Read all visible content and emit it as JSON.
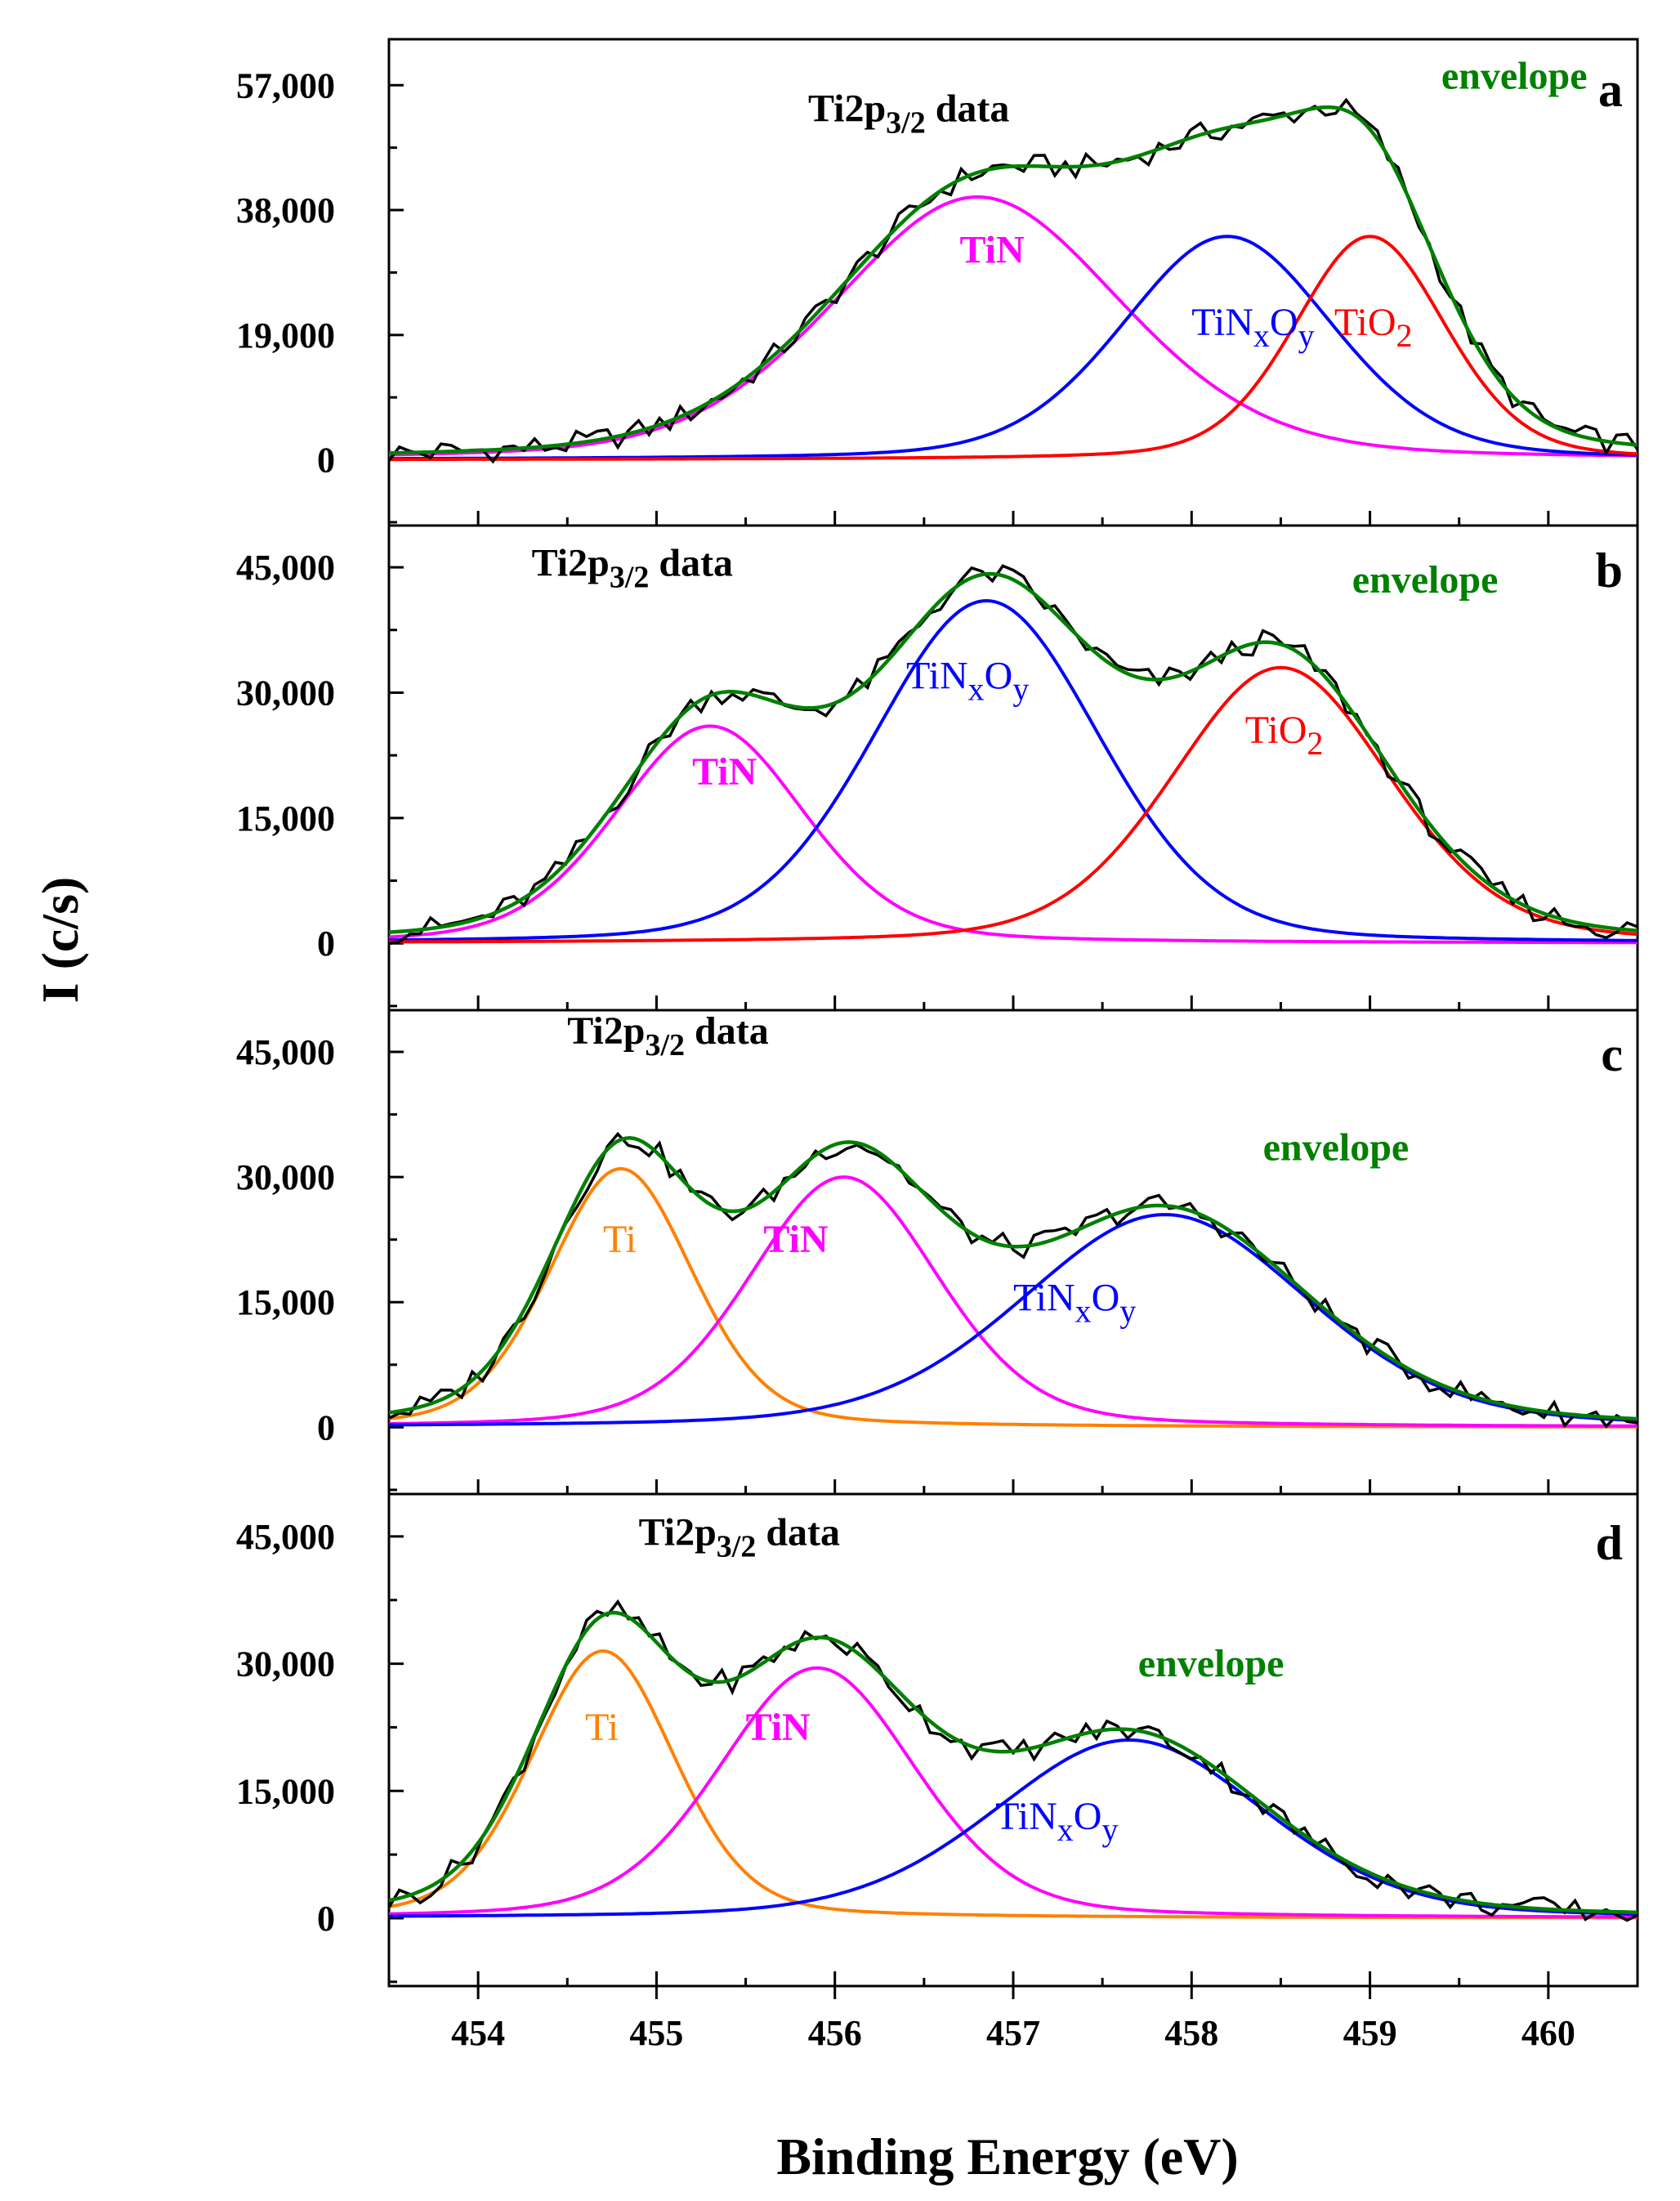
{
  "chart_data": [
    {
      "type": "line",
      "panel": "a",
      "xlabel": "Binding Energy (eV)",
      "ylabel": "I (c/s)",
      "xlim": [
        453.5,
        460.5
      ],
      "ylim": [
        -10000,
        64000
      ],
      "yticks": [
        0,
        19000,
        38000,
        57000
      ],
      "ytick_labels": [
        "0",
        "19,000",
        "38,000",
        "57,000"
      ],
      "annotations": {
        "data_label": "Ti2p",
        "data_label_sub": "3/2",
        "data_label_tail": " data",
        "envelope": "envelope",
        "peaks": [
          {
            "name": "TiN",
            "main": "TiN",
            "sub1": "",
            "mid": "",
            "sub2": ""
          },
          {
            "name": "TiNxOy",
            "main": "TiN",
            "sub1": "x",
            "mid": "O",
            "sub2": "y"
          },
          {
            "name": "TiO2",
            "main": "TiO",
            "sub1": "2",
            "mid": "",
            "sub2": ""
          }
        ]
      },
      "components": [
        {
          "name": "TiN",
          "color": "#ff00ff",
          "center": 456.8,
          "amplitude": 40000,
          "fwhm": 1.9,
          "eta": 0.25
        },
        {
          "name": "TiNxOy",
          "color": "#0000ff",
          "center": 458.2,
          "amplitude": 34000,
          "fwhm": 1.4,
          "eta": 0.25
        },
        {
          "name": "TiO2",
          "color": "#ff0000",
          "center": 459.0,
          "amplitude": 34000,
          "fwhm": 1.0,
          "eta": 0.25
        }
      ],
      "envelope_color": "#008000",
      "data_color": "#000000"
    },
    {
      "type": "line",
      "panel": "b",
      "xlabel": "Binding Energy (eV)",
      "ylabel": "I (c/s)",
      "xlim": [
        453.5,
        460.5
      ],
      "ylim": [
        -8000,
        50000
      ],
      "yticks": [
        0,
        15000,
        30000,
        45000
      ],
      "ytick_labels": [
        "0",
        "15,000",
        "30,000",
        "45,000"
      ],
      "annotations": {
        "data_label": "Ti2p",
        "data_label_sub": "3/2",
        "data_label_tail": " data",
        "envelope": "envelope",
        "peaks": [
          {
            "name": "TiN",
            "main": "TiN",
            "sub1": "",
            "mid": "",
            "sub2": ""
          },
          {
            "name": "TiNxOy",
            "main": "TiN",
            "sub1": "x",
            "mid": "O",
            "sub2": "y"
          },
          {
            "name": "TiO2",
            "main": "TiO",
            "sub1": "2",
            "mid": "",
            "sub2": ""
          }
        ]
      },
      "components": [
        {
          "name": "TiN",
          "color": "#ff00ff",
          "center": 455.3,
          "amplitude": 26000,
          "fwhm": 1.25,
          "eta": 0.25
        },
        {
          "name": "TiNxOy",
          "color": "#0000ff",
          "center": 456.85,
          "amplitude": 41000,
          "fwhm": 1.5,
          "eta": 0.2
        },
        {
          "name": "TiO2",
          "color": "#ff0000",
          "center": 458.5,
          "amplitude": 33000,
          "fwhm": 1.45,
          "eta": 0.25
        }
      ],
      "envelope_color": "#008000",
      "data_color": "#000000"
    },
    {
      "type": "line",
      "panel": "c",
      "xlabel": "Binding Energy (eV)",
      "ylabel": "I (c/s)",
      "xlim": [
        453.5,
        460.5
      ],
      "ylim": [
        -8000,
        50000
      ],
      "yticks": [
        0,
        15000,
        30000,
        45000
      ],
      "ytick_labels": [
        "0",
        "15,000",
        "30,000",
        "45,000"
      ],
      "annotations": {
        "data_label": "Ti2p",
        "data_label_sub": "3/2",
        "data_label_tail": " data",
        "envelope": "envelope",
        "peaks": [
          {
            "name": "Ti",
            "main": "Ti",
            "sub1": "",
            "mid": "",
            "sub2": ""
          },
          {
            "name": "TiN",
            "main": "TiN",
            "sub1": "",
            "mid": "",
            "sub2": ""
          },
          {
            "name": "TiNxOy",
            "main": "TiN",
            "sub1": "x",
            "mid": "O",
            "sub2": "y"
          }
        ]
      },
      "components": [
        {
          "name": "Ti",
          "color": "#ff8000",
          "center": 454.8,
          "amplitude": 31000,
          "fwhm": 0.95,
          "eta": 0.25
        },
        {
          "name": "TiN",
          "color": "#ff00ff",
          "center": 456.05,
          "amplitude": 30000,
          "fwhm": 1.25,
          "eta": 0.25
        },
        {
          "name": "TiNxOy",
          "color": "#0000ff",
          "center": 457.85,
          "amplitude": 25500,
          "fwhm": 1.9,
          "eta": 0.25
        }
      ],
      "envelope_color": "#008000",
      "data_color": "#000000"
    },
    {
      "type": "line",
      "panel": "d",
      "xlabel": "Binding Energy (eV)",
      "ylabel": "I (c/s)",
      "xlim": [
        453.5,
        460.5
      ],
      "ylim": [
        -8000,
        50000
      ],
      "yticks": [
        0,
        15000,
        30000,
        45000
      ],
      "ytick_labels": [
        "0",
        "15,000",
        "30,000",
        "45,000"
      ],
      "annotations": {
        "data_label": "Ti2p",
        "data_label_sub": "3/2",
        "data_label_tail": " data",
        "envelope": "envelope",
        "peaks": [
          {
            "name": "Ti",
            "main": "Ti",
            "sub1": "",
            "mid": "",
            "sub2": ""
          },
          {
            "name": "TiN",
            "main": "TiN",
            "sub1": "",
            "mid": "",
            "sub2": ""
          },
          {
            "name": "TiNxOy",
            "main": "TiN",
            "sub1": "x",
            "mid": "O",
            "sub2": "y"
          }
        ]
      },
      "components": [
        {
          "name": "Ti",
          "color": "#ff8000",
          "center": 454.7,
          "amplitude": 31500,
          "fwhm": 0.95,
          "eta": 0.25
        },
        {
          "name": "TiN",
          "color": "#ff00ff",
          "center": 455.9,
          "amplitude": 29500,
          "fwhm": 1.3,
          "eta": 0.25
        },
        {
          "name": "TiNxOy",
          "color": "#0000ff",
          "center": 457.65,
          "amplitude": 21000,
          "fwhm": 1.8,
          "eta": 0.25
        }
      ],
      "envelope_color": "#008000",
      "data_color": "#000000"
    }
  ],
  "shared_x_axis": {
    "ticks": [
      454,
      455,
      456,
      457,
      458,
      459,
      460
    ],
    "tick_labels": [
      "454",
      "455",
      "456",
      "457",
      "458",
      "459",
      "460"
    ],
    "title": "Binding Energy (eV)"
  },
  "shared_y_axis": {
    "title": "I (c/s)"
  }
}
